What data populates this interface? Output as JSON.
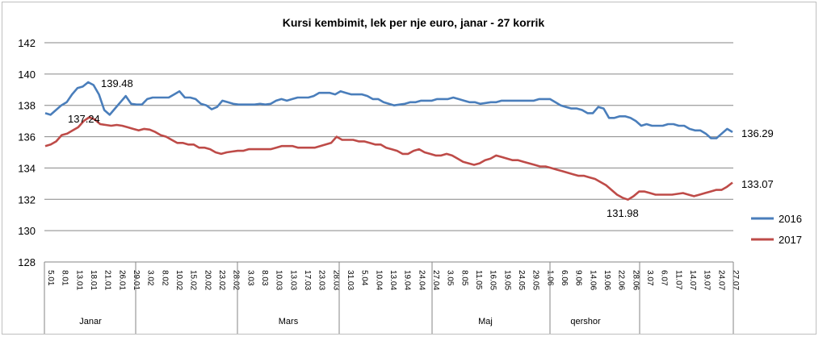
{
  "chart_data": {
    "type": "line",
    "title": "Kursi kembimit, lek per nje euro, janar - 27 korrik",
    "xlabel": "",
    "ylabel": "",
    "ylim": [
      128,
      142
    ],
    "yticks": [
      "128",
      "130",
      "132",
      "134",
      "136",
      "138",
      "140",
      "142"
    ],
    "grid": true,
    "legend_position": "right",
    "colors": {
      "2016": "#4a7ebb",
      "2017": "#be4b48"
    },
    "x_tick_labels": [
      "5.01",
      "8.01",
      "13.01",
      "18.01",
      "21.01",
      "26.01",
      "29.01",
      "3.02",
      "8.02",
      "10.02",
      "15.02",
      "20.02",
      "23.02",
      "28.02",
      "3.03",
      "8.03",
      "10.03",
      "13.03",
      "17.03",
      "23.03",
      "28.03",
      "31.03",
      "5.04",
      "10.04",
      "13.04",
      "19.04",
      "24.04",
      "27.04",
      "3.05",
      "8.05",
      "11.05",
      "16.05",
      "19.05",
      "24.05",
      "29.05",
      "1.06",
      "6.06",
      "9.06",
      "14.06",
      "19.06",
      "22.06",
      "28.06",
      "3.07",
      "6.07",
      "11.07",
      "14.07",
      "19.07",
      "24.07",
      "27.07"
    ],
    "months": [
      "Janar",
      "Mars",
      "Maj",
      "qershor"
    ],
    "series": [
      {
        "name": "2016",
        "values": [
          137.5,
          137.4,
          137.7,
          138.0,
          138.2,
          138.7,
          139.1,
          139.2,
          139.48,
          139.3,
          138.7,
          137.7,
          137.4,
          137.8,
          138.2,
          138.6,
          138.1,
          138.05,
          138.05,
          138.4,
          138.5,
          138.5,
          138.5,
          138.5,
          138.7,
          138.9,
          138.5,
          138.5,
          138.4,
          138.1,
          138.0,
          137.75,
          137.9,
          138.3,
          138.2,
          138.1,
          138.05,
          138.05,
          138.05,
          138.05,
          138.1,
          138.05,
          138.1,
          138.3,
          138.4,
          138.3,
          138.4,
          138.5,
          138.5,
          138.5,
          138.6,
          138.8,
          138.8,
          138.8,
          138.7,
          138.9,
          138.8,
          138.7,
          138.7,
          138.7,
          138.6,
          138.4,
          138.4,
          138.2,
          138.1,
          138.0,
          138.05,
          138.1,
          138.2,
          138.2,
          138.3,
          138.3,
          138.3,
          138.4,
          138.4,
          138.4,
          138.5,
          138.4,
          138.3,
          138.2,
          138.2,
          138.1,
          138.15,
          138.2,
          138.2,
          138.3,
          138.3,
          138.3,
          138.3,
          138.3,
          138.3,
          138.3,
          138.4,
          138.4,
          138.4,
          138.2,
          138.0,
          137.9,
          137.8,
          137.8,
          137.7,
          137.5,
          137.5,
          137.9,
          137.8,
          137.2,
          137.2,
          137.3,
          137.3,
          137.2,
          137.0,
          136.7,
          136.8,
          136.7,
          136.7,
          136.7,
          136.8,
          136.8,
          136.7,
          136.7,
          136.5,
          136.4,
          136.4,
          136.2,
          135.9,
          135.9,
          136.2,
          136.5,
          136.29
        ],
        "end_label": "136.29",
        "peak_label": "139.48"
      },
      {
        "name": "2017",
        "values": [
          135.4,
          135.5,
          135.7,
          136.1,
          136.2,
          136.4,
          136.6,
          137.0,
          137.24,
          137.1,
          136.8,
          136.75,
          136.7,
          136.75,
          136.7,
          136.6,
          136.5,
          136.4,
          136.5,
          136.45,
          136.3,
          136.1,
          136.0,
          135.8,
          135.6,
          135.6,
          135.5,
          135.5,
          135.3,
          135.3,
          135.2,
          135.0,
          134.9,
          135.0,
          135.05,
          135.1,
          135.1,
          135.2,
          135.2,
          135.2,
          135.2,
          135.2,
          135.3,
          135.4,
          135.4,
          135.4,
          135.3,
          135.3,
          135.3,
          135.3,
          135.4,
          135.5,
          135.6,
          136.0,
          135.8,
          135.8,
          135.8,
          135.7,
          135.7,
          135.6,
          135.5,
          135.5,
          135.3,
          135.2,
          135.1,
          134.9,
          134.9,
          135.1,
          135.2,
          135.0,
          134.9,
          134.8,
          134.8,
          134.9,
          134.8,
          134.6,
          134.4,
          134.3,
          134.2,
          134.3,
          134.5,
          134.6,
          134.8,
          134.7,
          134.6,
          134.5,
          134.5,
          134.4,
          134.3,
          134.2,
          134.1,
          134.1,
          134.0,
          133.9,
          133.8,
          133.7,
          133.6,
          133.5,
          133.5,
          133.4,
          133.3,
          133.1,
          132.9,
          132.6,
          132.3,
          132.1,
          131.98,
          132.2,
          132.5,
          132.5,
          132.4,
          132.3,
          132.3,
          132.3,
          132.3,
          132.35,
          132.4,
          132.3,
          132.2,
          132.3,
          132.4,
          132.5,
          132.6,
          132.6,
          132.8,
          133.07
        ],
        "end_label": "133.07",
        "peak_label": "137.24",
        "min_label": "131.98"
      }
    ]
  }
}
